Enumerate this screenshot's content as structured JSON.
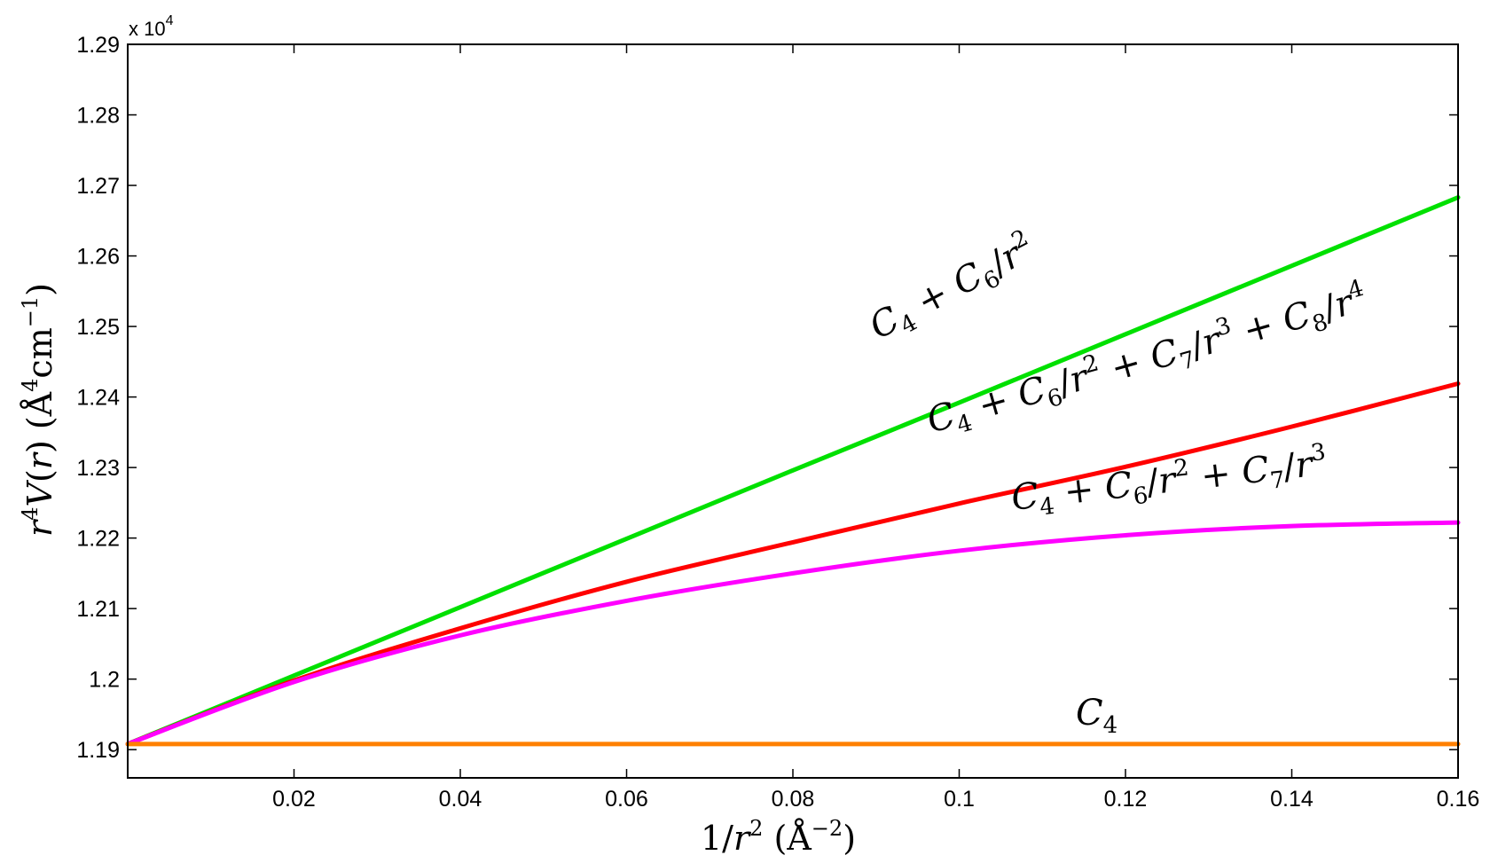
{
  "chart_data": {
    "type": "line",
    "xlabel": "1/r² (Å⁻²)",
    "ylabel": "r⁴V(r) (Å⁴cm⁻¹)",
    "y_multiplier": "x 10^4",
    "xlim": [
      0,
      0.16
    ],
    "ylim": [
      1.186,
      1.29
    ],
    "xticks": [
      0.02,
      0.04,
      0.06,
      0.08,
      0.1,
      0.12,
      0.14,
      0.16
    ],
    "xtick_labels": [
      "0.02",
      "0.04",
      "0.06",
      "0.08",
      "0.1",
      "0.12",
      "0.14",
      "0.16"
    ],
    "yticks": [
      1.19,
      1.2,
      1.21,
      1.22,
      1.23,
      1.24,
      1.25,
      1.26,
      1.27,
      1.28,
      1.29
    ],
    "ytick_labels": [
      "1.19",
      "1.2",
      "1.21",
      "1.22",
      "1.23",
      "1.24",
      "1.25",
      "1.26",
      "1.27",
      "1.28",
      "1.29"
    ],
    "grid": false,
    "legend": "none",
    "series": [
      {
        "name": "C4 + C6/r^2",
        "color": "#00e000",
        "x": [
          0,
          0.02,
          0.04,
          0.06,
          0.08,
          0.1,
          0.12,
          0.14,
          0.16
        ],
        "values": [
          1.1908,
          1.2005,
          1.2102,
          1.2199,
          1.2296,
          1.2392,
          1.2489,
          1.2586,
          1.2683
        ]
      },
      {
        "name": "C4 + C6/r^2 + C7/r^3 + C8/r^4",
        "color": "#ff0000",
        "x": [
          0,
          0.02,
          0.04,
          0.06,
          0.08,
          0.1,
          0.12,
          0.14,
          0.16
        ],
        "values": [
          1.1908,
          1.1998,
          1.2072,
          1.2138,
          1.2194,
          1.2249,
          1.2301,
          1.2358,
          1.2419
        ]
      },
      {
        "name": "C4 + C6/r^2 + C7/r^3",
        "color": "#ff00ff",
        "x": [
          0,
          0.02,
          0.04,
          0.06,
          0.08,
          0.1,
          0.12,
          0.14,
          0.16
        ],
        "values": [
          1.1908,
          1.1996,
          1.2062,
          1.2111,
          1.215,
          1.2182,
          1.2204,
          1.2217,
          1.2222
        ]
      },
      {
        "name": "C4",
        "color": "#ff8000",
        "x": [
          0,
          0.02,
          0.04,
          0.06,
          0.08,
          0.1,
          0.12,
          0.14,
          0.16
        ],
        "values": [
          1.1908,
          1.1908,
          1.1908,
          1.1908,
          1.1908,
          1.1908,
          1.1908,
          1.1908,
          1.1908
        ]
      }
    ],
    "annotations": [
      {
        "series": 0,
        "text": "C4 + C6/r2",
        "color": "#000000"
      },
      {
        "series": 1,
        "text": "C4 + C6/r2 + C7/r3 + C8/r4",
        "color": "#ff0000"
      },
      {
        "series": 2,
        "text": "C4 + C6/r2 + C7/r3",
        "color": "#000000"
      },
      {
        "series": 3,
        "text": "C4",
        "color": "#000000"
      }
    ]
  }
}
